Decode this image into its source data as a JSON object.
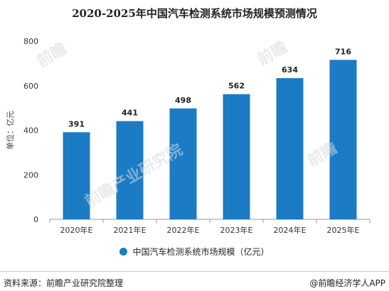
{
  "chart_data": {
    "type": "bar",
    "title": "2020-2025年中国汽车检测系统市场规模预测情况",
    "ylabel": "单位：亿元",
    "xlabel": "",
    "categories": [
      "2020年E",
      "2021年E",
      "2022年E",
      "2023年E",
      "2024年E",
      "2025年E"
    ],
    "series": [
      {
        "name": "中国汽车检测系统市场规模（亿元）",
        "values": [
          391,
          441,
          498,
          562,
          634,
          716
        ]
      }
    ],
    "ylim": [
      0,
      800
    ],
    "yticks": [
      0,
      200,
      400,
      600,
      800
    ],
    "grid": false,
    "legend_position": "bottom",
    "bar_color": "#1b7bc4"
  },
  "footer": {
    "source": "资料来源：前瞻产业研究院整理",
    "brand": "@前瞻经济学人APP"
  }
}
